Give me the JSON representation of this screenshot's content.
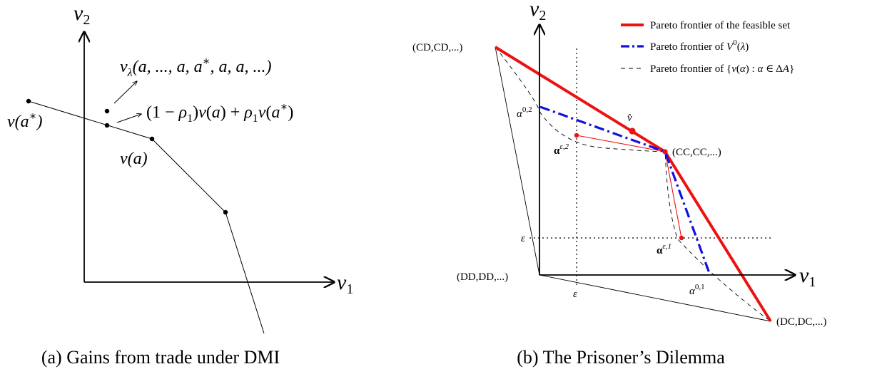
{
  "panel_a": {
    "caption": "(a) Gains from trade under DMI",
    "axis_x": "v",
    "axis_x_sub": "1",
    "axis_y": "v",
    "axis_y_sub": "2",
    "label_va_star": "v(a*)",
    "label_va": "v(a)",
    "label_vlambda": "v_λ(a, ..., a, a*, a, a, ...)",
    "label_convex": "(1 − ρ₁)v(a) + ρ₁v(a*)"
  },
  "panel_b": {
    "caption": "(b) The Prisoner’s Dilemma",
    "axis_x": "v",
    "axis_x_sub": "1",
    "axis_y": "v",
    "axis_y_sub": "2",
    "pt_cdcd": "(CD,CD,...)",
    "pt_cccc": "(CC,CC,...)",
    "pt_dddd": "(DD,DD,...)",
    "pt_dcdc": "(DC,DC,...)",
    "label_vhat": "v̂",
    "label_eps_x": "ε",
    "label_eps_y": "ε",
    "label_alpha02": "α^{0,2}",
    "label_alpha01": "α^{0,1}",
    "label_alphae2": "α^{ε,2}",
    "label_alphae1": "α^{ε,1}",
    "legend": {
      "item1": "Pareto frontier of the feasible set",
      "item2": "Pareto frontier of V⁰(λ)",
      "item3": "Pareto frontier of {v(α) : α ∈ ΔA}"
    },
    "colors": {
      "frontier": "#ee1111",
      "v0": "#1111dd",
      "dashed": "#000000"
    }
  }
}
